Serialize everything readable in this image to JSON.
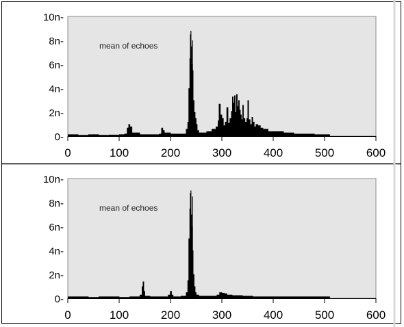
{
  "chart_data": [
    {
      "type": "bar",
      "annotation": "mean  of echoes",
      "xlim": [
        0,
        600
      ],
      "ylim": [
        0,
        10
      ],
      "x_ticks": [
        "0",
        "100",
        "200",
        "300",
        "400",
        "500",
        "600"
      ],
      "y_ticks": [
        "0-",
        "2n-",
        "4n-",
        "6n-",
        "8n-",
        "10n-"
      ],
      "grid": false,
      "x": [
        0,
        20,
        40,
        60,
        80,
        100,
        110,
        115,
        118,
        121,
        125,
        140,
        160,
        178,
        182,
        185,
        188,
        200,
        220,
        230,
        233,
        235,
        237,
        238,
        239,
        240,
        241,
        242,
        243,
        244,
        246,
        248,
        250,
        252,
        255,
        260,
        270,
        280,
        288,
        292,
        294,
        297,
        300,
        303,
        306,
        309,
        312,
        315,
        318,
        320,
        322,
        324,
        326,
        328,
        330,
        332,
        334,
        336,
        338,
        340,
        342,
        345,
        348,
        350,
        352,
        355,
        358,
        360,
        363,
        366,
        370,
        375,
        380,
        390,
        400,
        420,
        440,
        460,
        480,
        500,
        508
      ],
      "values": [
        0.15,
        0.1,
        0.15,
        0.1,
        0.12,
        0.15,
        0.2,
        0.7,
        1.0,
        0.8,
        0.3,
        0.15,
        0.15,
        0.2,
        0.7,
        0.5,
        0.3,
        0.2,
        0.2,
        0.6,
        1.2,
        4.0,
        6.5,
        8.5,
        8.8,
        7.5,
        6.0,
        8.0,
        5.5,
        3.0,
        2.0,
        1.5,
        1.0,
        0.5,
        0.3,
        0.3,
        0.4,
        0.6,
        0.8,
        1.3,
        2.7,
        1.8,
        1.5,
        0.9,
        1.2,
        2.4,
        1.1,
        1.5,
        2.1,
        3.3,
        2.8,
        3.4,
        2.0,
        3.5,
        2.5,
        3.0,
        2.2,
        1.8,
        1.4,
        2.6,
        1.5,
        1.2,
        1.5,
        3.0,
        1.4,
        1.0,
        1.6,
        1.2,
        0.8,
        1.0,
        0.9,
        0.7,
        0.6,
        0.4,
        0.4,
        0.3,
        0.2,
        0.2,
        0.15,
        0.15,
        0.15
      ]
    },
    {
      "type": "bar",
      "annotation": "mean  of echoes",
      "xlim": [
        0,
        600
      ],
      "ylim": [
        0,
        10
      ],
      "x_ticks": [
        "0",
        "100",
        "200",
        "300",
        "400",
        "500",
        "600"
      ],
      "y_ticks": [
        "0-",
        "2n-",
        "4n-",
        "6n-",
        "8n-",
        "10n-"
      ],
      "grid": false,
      "x": [
        0,
        20,
        40,
        60,
        80,
        100,
        120,
        140,
        144,
        146,
        148,
        150,
        160,
        180,
        195,
        199,
        202,
        205,
        220,
        230,
        233,
        235,
        237,
        238,
        239,
        240,
        241,
        242,
        243,
        244,
        246,
        248,
        250,
        255,
        270,
        290,
        295,
        300,
        305,
        310,
        320,
        340,
        360,
        380,
        400,
        420,
        440,
        460,
        480,
        500,
        508
      ],
      "values": [
        0.15,
        0.15,
        0.1,
        0.15,
        0.15,
        0.1,
        0.15,
        0.3,
        1.0,
        1.4,
        0.6,
        0.2,
        0.15,
        0.15,
        0.3,
        0.6,
        0.3,
        0.15,
        0.2,
        0.5,
        1.5,
        5.0,
        7.5,
        8.8,
        9.0,
        7.0,
        6.0,
        8.5,
        4.0,
        2.0,
        1.0,
        0.5,
        0.3,
        0.2,
        0.2,
        0.3,
        0.5,
        0.45,
        0.4,
        0.3,
        0.25,
        0.2,
        0.15,
        0.15,
        0.15,
        0.15,
        0.15,
        0.15,
        0.15,
        0.15,
        0.15
      ]
    }
  ]
}
